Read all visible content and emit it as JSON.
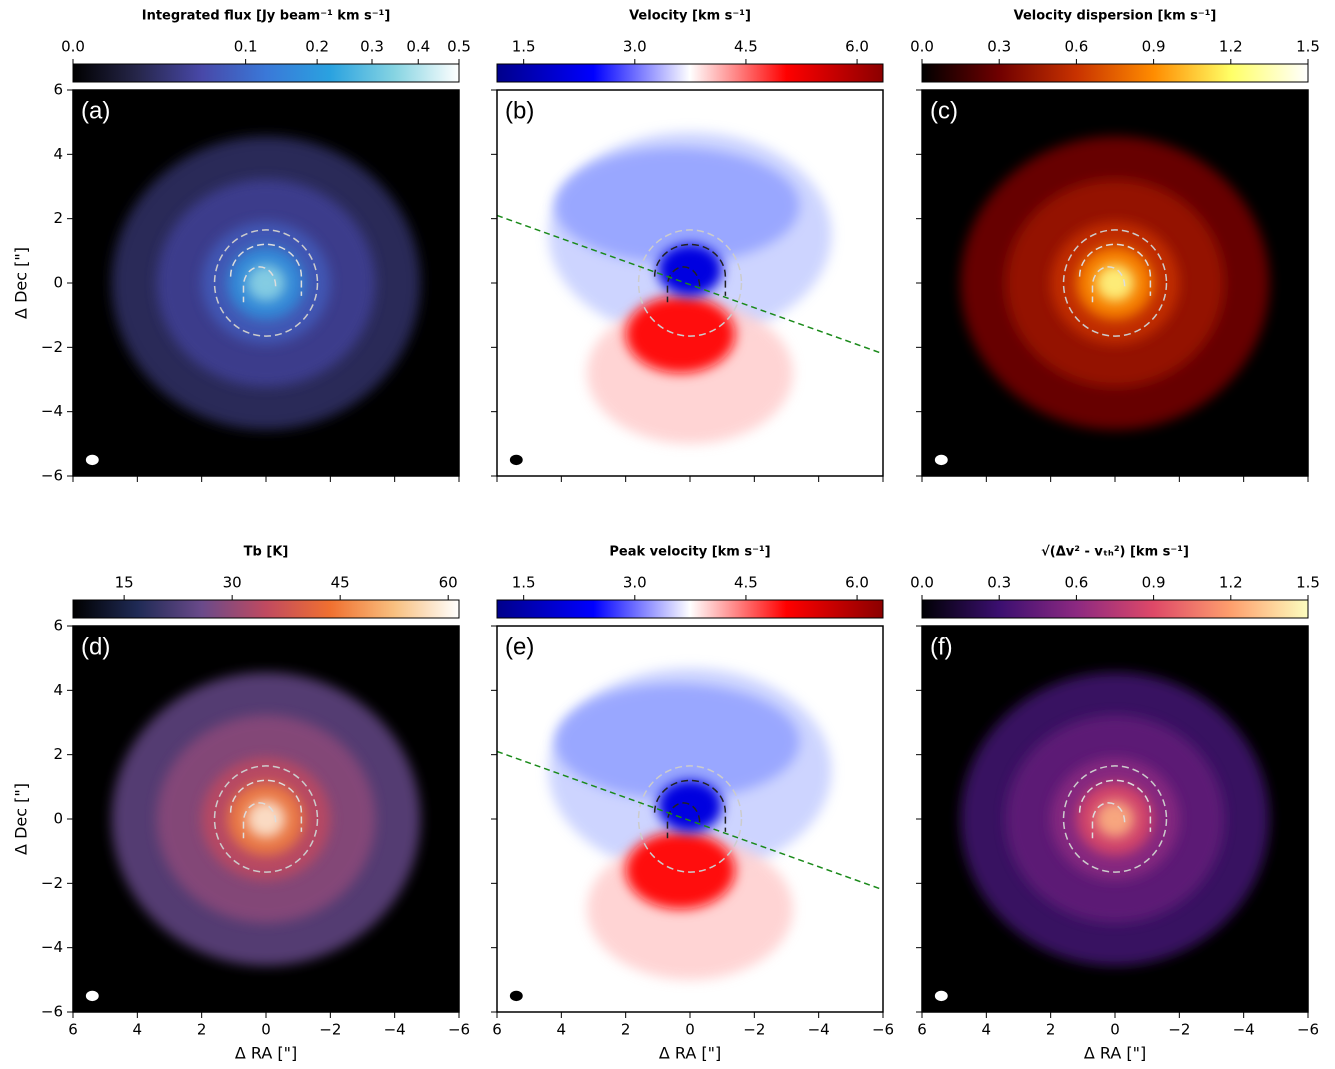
{
  "chart_data": [
    {
      "type": "image",
      "title": "Integrated flux [Jy beam⁻¹ km s⁻¹]",
      "panel_label": "(a)",
      "colorbar": {
        "clim": [
          0,
          0.5
        ],
        "scale": "sqrt",
        "colormap": [
          "#000000",
          "#26264a",
          "#4848a8",
          "#3a78d8",
          "#2aa2e0",
          "#86d4e2",
          "#ffffff"
        ],
        "ticks": [
          {
            "value": 0,
            "label": "0.0"
          },
          0.1,
          0.2,
          0.3,
          0.4,
          0.5
        ]
      },
      "xlim": [
        6,
        -6
      ],
      "ylim": [
        -6,
        6
      ],
      "xticks": [
        6,
        4,
        2,
        0,
        {
          "value": -2,
          "label": "−2"
        },
        {
          "value": -4,
          "label": "−4"
        },
        {
          "value": -6,
          "label": "−6"
        }
      ],
      "yticks": [
        {
          "value": -6,
          "label": "−6"
        },
        {
          "value": -4,
          "label": "−4"
        },
        {
          "value": -2,
          "label": "−2"
        },
        0,
        2,
        4,
        6
      ],
      "xtick_labels": false,
      "ytick_labels": true,
      "ylabel": "Δ Dec [\"]",
      "background": "#000000"
    },
    {
      "type": "image",
      "title": "Velocity [km s⁻¹]",
      "panel_label": "(b)",
      "colorbar": {
        "clim": [
          1.14,
          6.35
        ],
        "scale": "linear",
        "colormap": [
          "#00008b",
          "#0000ff",
          "#ffffff",
          "#ff0000",
          "#8b0000"
        ],
        "ticks": [
          1.5,
          {
            "value": 3,
            "label": "3.0"
          },
          4.5,
          {
            "value": 6,
            "label": "6.0"
          }
        ]
      },
      "xlim": [
        6,
        -6
      ],
      "ylim": [
        -6,
        6
      ],
      "xticks": [
        6,
        4,
        2,
        0,
        {
          "value": -2,
          "label": "−2"
        },
        {
          "value": -4,
          "label": "−4"
        },
        {
          "value": -6,
          "label": "−6"
        }
      ],
      "yticks": [
        {
          "value": -6,
          "label": "−6"
        },
        {
          "value": -4,
          "label": "−4"
        },
        {
          "value": -2,
          "label": "−2"
        },
        0,
        2,
        4,
        6
      ],
      "xtick_labels": false,
      "ytick_labels": false,
      "background": "#ffffff"
    },
    {
      "type": "image",
      "title": "Velocity dispersion [km s⁻¹]",
      "panel_label": "(c)",
      "colorbar": {
        "clim": [
          0,
          1.5
        ],
        "scale": "linear",
        "colormap": [
          "#000000",
          "#700000",
          "#c83200",
          "#ff8c00",
          "#ffff66",
          "#ffffff"
        ],
        "ticks": [
          {
            "value": 0,
            "label": "0.0"
          },
          0.3,
          0.6,
          0.9,
          1.2,
          1.5
        ]
      },
      "xlim": [
        6,
        -6
      ],
      "ylim": [
        -6,
        6
      ],
      "xticks": [
        6,
        4,
        2,
        0,
        {
          "value": -2,
          "label": "−2"
        },
        {
          "value": -4,
          "label": "−4"
        },
        {
          "value": -6,
          "label": "−6"
        }
      ],
      "yticks": [
        {
          "value": -6,
          "label": "−6"
        },
        {
          "value": -4,
          "label": "−4"
        },
        {
          "value": -2,
          "label": "−2"
        },
        0,
        2,
        4,
        6
      ],
      "xtick_labels": false,
      "ytick_labels": false,
      "background": "#000000"
    },
    {
      "type": "image",
      "title": "Tb [K]",
      "panel_label": "(d)",
      "colorbar": {
        "clim": [
          7.9,
          61.5
        ],
        "scale": "linear",
        "colormap": [
          "#000000",
          "#1f2a55",
          "#6a4a8a",
          "#c04a60",
          "#f07030",
          "#f8c080",
          "#ffffff"
        ],
        "ticks": [
          15,
          30,
          45,
          60
        ]
      },
      "xlim": [
        6,
        -6
      ],
      "ylim": [
        -6,
        6
      ],
      "xticks": [
        6,
        4,
        2,
        0,
        {
          "value": -2,
          "label": "−2"
        },
        {
          "value": -4,
          "label": "−4"
        },
        {
          "value": -6,
          "label": "−6"
        }
      ],
      "yticks": [
        {
          "value": -6,
          "label": "−6"
        },
        {
          "value": -4,
          "label": "−4"
        },
        {
          "value": -2,
          "label": "−2"
        },
        0,
        2,
        4,
        6
      ],
      "xtick_labels": true,
      "ytick_labels": true,
      "xlabel": "Δ RA [\"]",
      "ylabel": "Δ Dec [\"]",
      "background": "#000000"
    },
    {
      "type": "image",
      "title": "Peak velocity [km s⁻¹]",
      "panel_label": "(e)",
      "colorbar": {
        "clim": [
          1.14,
          6.35
        ],
        "scale": "linear",
        "colormap": [
          "#00008b",
          "#0000ff",
          "#ffffff",
          "#ff0000",
          "#8b0000"
        ],
        "ticks": [
          1.5,
          {
            "value": 3,
            "label": "3.0"
          },
          4.5,
          {
            "value": 6,
            "label": "6.0"
          }
        ]
      },
      "xlim": [
        6,
        -6
      ],
      "ylim": [
        -6,
        6
      ],
      "xticks": [
        6,
        4,
        2,
        0,
        {
          "value": -2,
          "label": "−2"
        },
        {
          "value": -4,
          "label": "−4"
        },
        {
          "value": -6,
          "label": "−6"
        }
      ],
      "yticks": [
        {
          "value": -6,
          "label": "−6"
        },
        {
          "value": -4,
          "label": "−4"
        },
        {
          "value": -2,
          "label": "−2"
        },
        0,
        2,
        4,
        6
      ],
      "xtick_labels": true,
      "ytick_labels": false,
      "xlabel": "Δ RA [\"]",
      "background": "#ffffff"
    },
    {
      "type": "image",
      "title": "√(Δv² - vₜₕ²) [km s⁻¹]",
      "panel_label": "(f)",
      "colorbar": {
        "clim": [
          0,
          1.5
        ],
        "scale": "linear",
        "colormap": [
          "#000004",
          "#3b0f70",
          "#8c2981",
          "#de4968",
          "#fe9f6d",
          "#fcfdbf"
        ],
        "ticks": [
          {
            "value": 0,
            "label": "0.0"
          },
          0.3,
          0.6,
          0.9,
          1.2,
          1.5
        ]
      },
      "xlim": [
        6,
        -6
      ],
      "ylim": [
        -6,
        6
      ],
      "xticks": [
        6,
        4,
        2,
        0,
        {
          "value": -2,
          "label": "−2"
        },
        {
          "value": -4,
          "label": "−4"
        },
        {
          "value": -6,
          "label": "−6"
        }
      ],
      "yticks": [
        {
          "value": -6,
          "label": "−6"
        },
        {
          "value": -4,
          "label": "−4"
        },
        {
          "value": -2,
          "label": "−2"
        },
        0,
        2,
        4,
        6
      ],
      "xtick_labels": true,
      "ytick_labels": false,
      "xlabel": "Δ RA [\"]",
      "background": "#000000"
    }
  ]
}
